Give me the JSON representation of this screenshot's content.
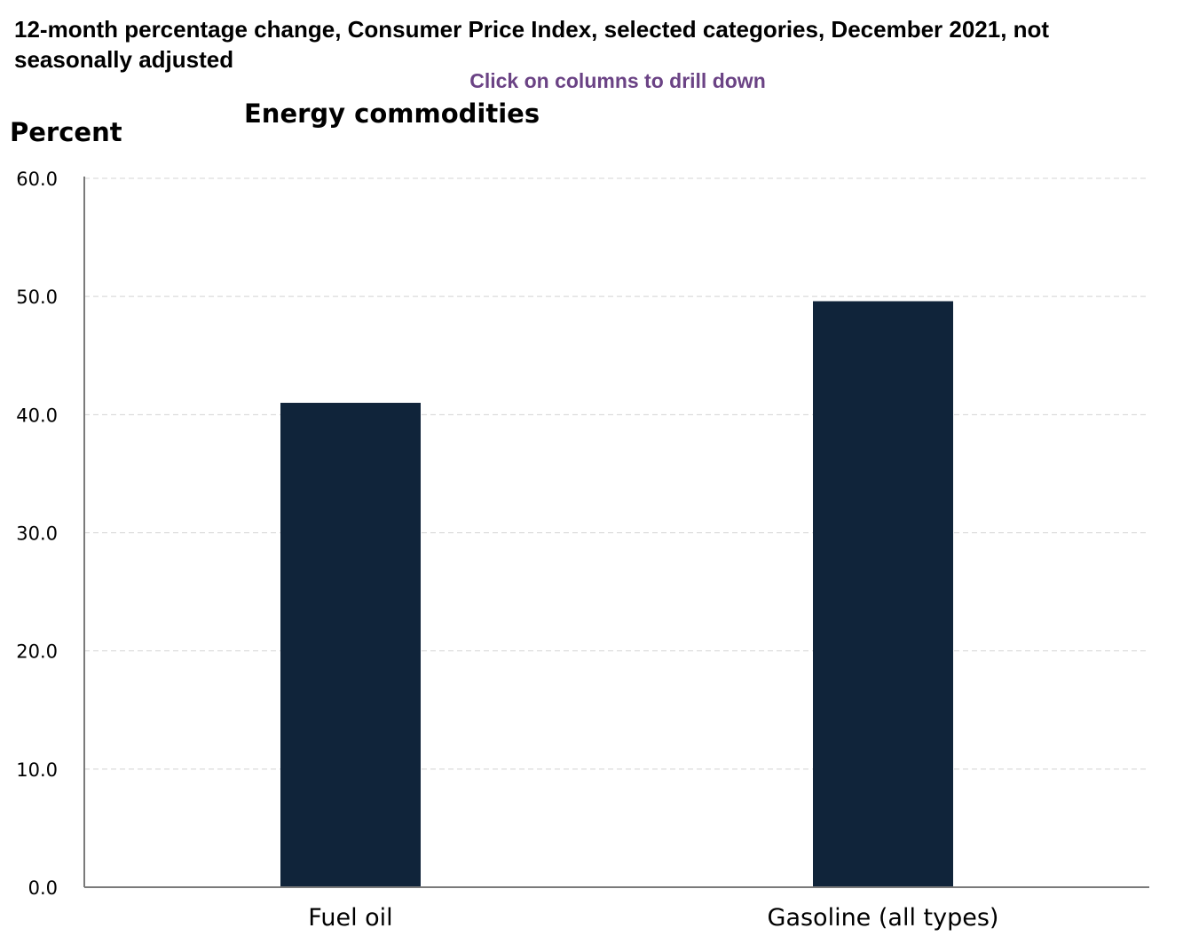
{
  "header": {
    "title": "12-month percentage change, Consumer Price Index, selected categories, December 2021, not seasonally adjusted",
    "drill_hint": "Click on columns to drill down",
    "subtitle": "Energy commodities",
    "y_unit_label": "Percent"
  },
  "colors": {
    "bar": "#10243a",
    "hint": "#6b4385",
    "grid": "#d4d4d4",
    "axis": "#7a7a7a"
  },
  "chart_data": {
    "type": "bar",
    "title": "12-month percentage change, Consumer Price Index, selected categories, December 2021, not seasonally adjusted",
    "subtitle": "Energy commodities",
    "ylabel": "Percent",
    "xlabel": "",
    "categories": [
      "Fuel oil",
      "Gasoline (all types)"
    ],
    "values": [
      41.0,
      49.6
    ],
    "ylim": [
      0,
      60
    ],
    "yticks": [
      0,
      10,
      20,
      30,
      40,
      50,
      60
    ],
    "ytick_labels": [
      "0.0",
      "10.0",
      "20.0",
      "30.0",
      "40.0",
      "50.0",
      "60.0"
    ],
    "grid": true,
    "legend": "none"
  }
}
